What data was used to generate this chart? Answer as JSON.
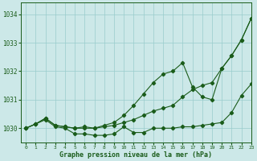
{
  "title": "Graphe pression niveau de la mer (hPa)",
  "background_color": "#cce8e8",
  "grid_color": "#99cccc",
  "line_color": "#1a5c1a",
  "xlim": [
    -0.5,
    23
  ],
  "ylim": [
    1029.5,
    1034.4
  ],
  "yticks": [
    1030,
    1031,
    1032,
    1033,
    1034
  ],
  "xticks": [
    0,
    1,
    2,
    3,
    4,
    5,
    6,
    7,
    8,
    9,
    10,
    11,
    12,
    13,
    14,
    15,
    16,
    17,
    18,
    19,
    20,
    21,
    22,
    23
  ],
  "series1_x": [
    0,
    1,
    2,
    3,
    4,
    5,
    6,
    7,
    8,
    9,
    10,
    11,
    12,
    13,
    14,
    15,
    16,
    17,
    18,
    19,
    20,
    21,
    22,
    23
  ],
  "series1_y": [
    1030.0,
    1030.15,
    1030.3,
    1030.05,
    1030.0,
    1029.8,
    1029.8,
    1029.75,
    1029.75,
    1029.8,
    1030.05,
    1029.85,
    1029.85,
    1030.0,
    1030.0,
    1030.0,
    1030.05,
    1030.05,
    1030.1,
    1030.15,
    1030.2,
    1030.55,
    1031.15,
    1031.55
  ],
  "series2_x": [
    0,
    1,
    2,
    3,
    4,
    5,
    6,
    7,
    8,
    9,
    10,
    11,
    12,
    13,
    14,
    15,
    16,
    17,
    18,
    19,
    20,
    21,
    22,
    23
  ],
  "series2_y": [
    1030.0,
    1030.15,
    1030.35,
    1030.1,
    1030.05,
    1030.0,
    1030.0,
    1030.0,
    1030.05,
    1030.1,
    1030.2,
    1030.3,
    1030.45,
    1030.6,
    1030.7,
    1030.8,
    1031.1,
    1031.35,
    1031.5,
    1031.6,
    1032.1,
    1032.55,
    1033.1,
    1033.85
  ],
  "series3_x": [
    0,
    1,
    2,
    3,
    4,
    5,
    6,
    7,
    8,
    9,
    10,
    11,
    12,
    13,
    14,
    15,
    16,
    17,
    18,
    19,
    20,
    21,
    22,
    23
  ],
  "series3_y": [
    1030.0,
    1030.15,
    1030.35,
    1030.1,
    1030.05,
    1030.0,
    1030.05,
    1030.0,
    1030.1,
    1030.2,
    1030.45,
    1030.8,
    1031.2,
    1031.6,
    1031.9,
    1032.0,
    1032.3,
    1031.45,
    1031.1,
    1031.0,
    1032.1,
    1032.55,
    1033.1,
    1033.85
  ]
}
